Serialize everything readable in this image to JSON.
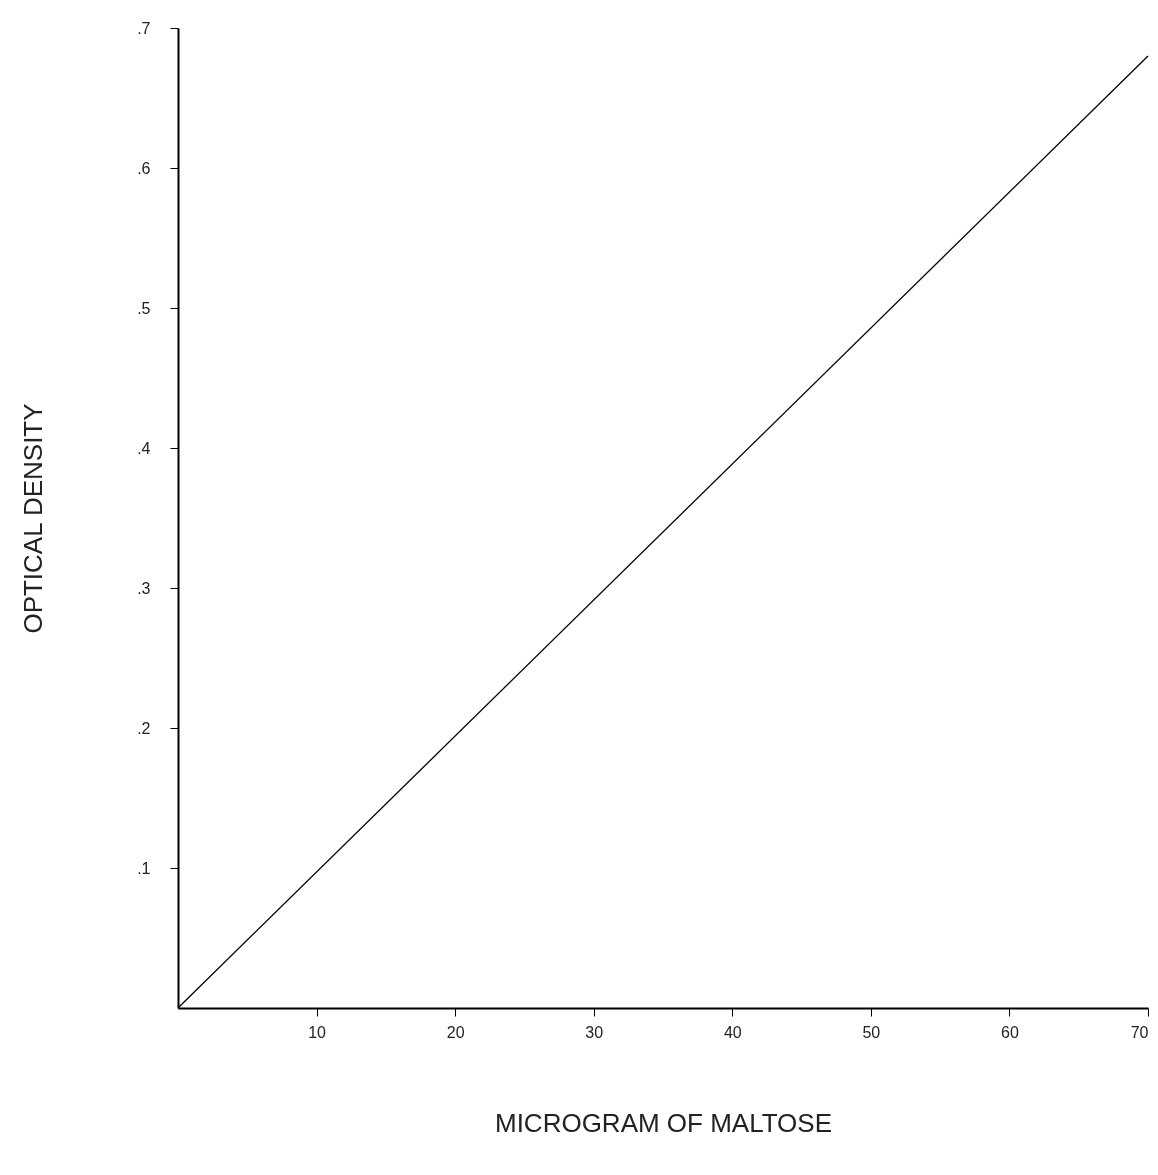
{
  "chart_data": {
    "type": "line",
    "xlabel": "MICROGRAM   OF   MALTOSE",
    "ylabel": "OPTICAL   DENSITY",
    "x": [
      0,
      70
    ],
    "series": [
      {
        "color": "#000000",
        "values": [
          0,
          0.68
        ]
      }
    ],
    "xlim": [
      0,
      70
    ],
    "xticks": [
      10,
      20,
      30,
      40,
      50,
      60,
      70
    ],
    "ylim": [
      0,
      0.7
    ],
    "yticks": [
      {
        "value": 0.1,
        "label": ".1"
      },
      {
        "value": 0.2,
        "label": ".2"
      },
      {
        "value": 0.3,
        "label": ".3"
      },
      {
        "value": 0.4,
        "label": ".4"
      },
      {
        "value": 0.5,
        "label": ".5"
      },
      {
        "value": 0.6,
        "label": ".6"
      },
      {
        "value": 0.7,
        "label": ".7"
      }
    ],
    "grid": false,
    "marker": "none",
    "line_style": "solid"
  }
}
